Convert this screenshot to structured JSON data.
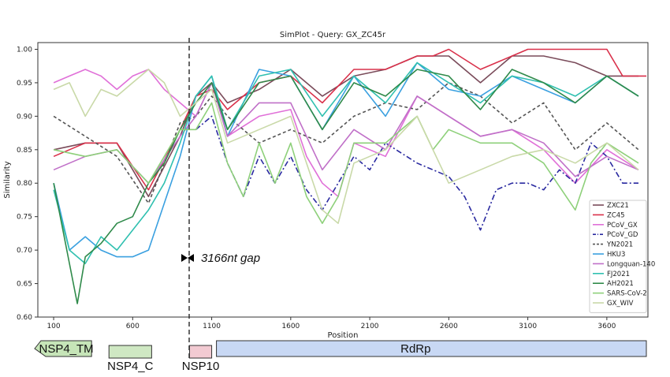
{
  "chart_data": {
    "type": "line",
    "title": "SimPlot - Query: GX_ZC45r",
    "xlabel": "Position",
    "ylabel": "Similarity",
    "xlim": [
      0,
      3860
    ],
    "ylim": [
      0.6,
      1.01
    ],
    "xticks": [
      100,
      600,
      1100,
      1600,
      2100,
      2600,
      3100,
      3600
    ],
    "xtick_labels": [
      "100",
      "600",
      "1100",
      "1600",
      "2100",
      "2600",
      "3100",
      "3600"
    ],
    "yticks": [
      0.6,
      0.65,
      0.7,
      0.75,
      0.8,
      0.85,
      0.9,
      0.95,
      1.0
    ],
    "ytick_labels": [
      "0.60",
      "0.65",
      "0.70",
      "0.75",
      "0.80",
      "0.85",
      "0.90",
      "0.95",
      "1.00"
    ],
    "gap_marker": {
      "x": 920,
      "label": "3166nt gap"
    },
    "legend_position": "lower-right",
    "series": [
      {
        "name": "ZXC21",
        "color": "#7a4b5a",
        "dash": "solid",
        "x": [
          100,
          300,
          500,
          700,
          900,
          1000,
          1100,
          1200,
          1400,
          1600,
          1800,
          2000,
          2200,
          2400,
          2600,
          2800,
          3000,
          3200,
          3400,
          3600,
          3800
        ],
        "y": [
          0.85,
          0.86,
          0.86,
          0.78,
          0.87,
          0.93,
          0.95,
          0.92,
          0.94,
          0.97,
          0.93,
          0.96,
          0.97,
          0.99,
          0.99,
          0.95,
          0.99,
          0.99,
          0.98,
          0.96,
          0.96
        ]
      },
      {
        "name": "ZC45",
        "color": "#d9304a",
        "dash": "solid",
        "x": [
          100,
          300,
          500,
          700,
          900,
          1000,
          1100,
          1200,
          1400,
          1600,
          1800,
          2000,
          2200,
          2400,
          2500,
          2600,
          2800,
          3000,
          3100,
          3600,
          3700,
          3850
        ],
        "y": [
          0.84,
          0.86,
          0.86,
          0.79,
          0.88,
          0.93,
          0.94,
          0.91,
          0.95,
          0.96,
          0.92,
          0.97,
          0.97,
          0.99,
          0.99,
          1.0,
          0.97,
          0.99,
          1.0,
          1.0,
          0.96,
          0.96
        ]
      },
      {
        "name": "PCoV_GX",
        "color": "#e070d8",
        "dash": "solid",
        "x": [
          100,
          200,
          300,
          400,
          500,
          600,
          700,
          800,
          900,
          1000,
          1100,
          1200,
          1400,
          1600,
          1700,
          1800,
          1900,
          2000,
          2200,
          2400,
          2600,
          2800,
          3000,
          3200,
          3400,
          3600,
          3800
        ],
        "y": [
          0.95,
          0.96,
          0.97,
          0.96,
          0.94,
          0.96,
          0.97,
          0.94,
          0.92,
          0.9,
          0.95,
          0.87,
          0.9,
          0.91,
          0.84,
          0.8,
          0.78,
          0.86,
          0.84,
          0.93,
          0.9,
          0.87,
          0.88,
          0.85,
          0.8,
          0.85,
          0.82
        ]
      },
      {
        "name": "PCoV_GD",
        "color": "#2a2aa0",
        "dash": "dashdot",
        "x": [
          1000,
          1100,
          1200,
          1300,
          1400,
          1500,
          1600,
          1700,
          1800,
          1900,
          2000,
          2100,
          2200,
          2400,
          2600,
          2700,
          2800,
          2900,
          3000,
          3100,
          3200,
          3300,
          3400,
          3500,
          3600,
          3700,
          3800
        ],
        "y": [
          0.88,
          0.9,
          0.83,
          0.78,
          0.84,
          0.8,
          0.84,
          0.79,
          0.76,
          0.8,
          0.84,
          0.82,
          0.86,
          0.83,
          0.81,
          0.78,
          0.73,
          0.79,
          0.8,
          0.8,
          0.79,
          0.82,
          0.8,
          0.86,
          0.84,
          0.8,
          0.8
        ]
      },
      {
        "name": "YN2021",
        "color": "#555555",
        "dash": "dashed",
        "x": [
          100,
          300,
          500,
          700,
          900,
          1000,
          1100,
          1200,
          1400,
          1600,
          1800,
          2000,
          2200,
          2400,
          2600,
          2800,
          3000,
          3200,
          3400,
          3600,
          3800
        ],
        "y": [
          0.9,
          0.87,
          0.84,
          0.77,
          0.89,
          0.9,
          0.93,
          0.9,
          0.86,
          0.88,
          0.86,
          0.9,
          0.92,
          0.91,
          0.95,
          0.93,
          0.89,
          0.92,
          0.85,
          0.89,
          0.85
        ]
      },
      {
        "name": "HKU3",
        "color": "#3aa0e0",
        "dash": "solid",
        "x": [
          100,
          200,
          300,
          400,
          500,
          600,
          700,
          800,
          900,
          1000,
          1100,
          1200,
          1400,
          1600,
          1800,
          2000,
          2200,
          2400,
          2600,
          2800,
          3000,
          3200,
          3400,
          3600,
          3800
        ],
        "y": [
          0.8,
          0.7,
          0.72,
          0.7,
          0.69,
          0.69,
          0.7,
          0.77,
          0.84,
          0.93,
          0.96,
          0.87,
          0.97,
          0.96,
          0.88,
          0.96,
          0.9,
          0.98,
          0.94,
          0.93,
          0.96,
          0.94,
          0.92,
          0.96,
          0.93
        ]
      },
      {
        "name": "Longquan-140",
        "color": "#c070c8",
        "dash": "solid",
        "x": [
          100,
          300,
          500,
          700,
          900,
          1000,
          1100,
          1200,
          1400,
          1600,
          1800,
          2000,
          2200,
          2400,
          2600,
          2800,
          3000,
          3200,
          3400,
          3600,
          3800
        ],
        "y": [
          0.82,
          0.84,
          0.85,
          0.8,
          0.87,
          0.9,
          0.95,
          0.87,
          0.92,
          0.92,
          0.82,
          0.88,
          0.85,
          0.93,
          0.9,
          0.87,
          0.88,
          0.86,
          0.81,
          0.84,
          0.82
        ]
      },
      {
        "name": "FJ2021",
        "color": "#30c0b0",
        "dash": "solid",
        "x": [
          100,
          200,
          300,
          400,
          500,
          600,
          700,
          800,
          900,
          1000,
          1100,
          1200,
          1400,
          1600,
          1800,
          2000,
          2200,
          2400,
          2600,
          2800,
          3000,
          3200,
          3400,
          3600,
          3800
        ],
        "y": [
          0.79,
          0.7,
          0.68,
          0.72,
          0.7,
          0.73,
          0.76,
          0.8,
          0.86,
          0.93,
          0.96,
          0.88,
          0.96,
          0.97,
          0.9,
          0.96,
          0.92,
          0.98,
          0.95,
          0.92,
          0.96,
          0.95,
          0.93,
          0.96,
          0.93
        ]
      },
      {
        "name": "AH2021",
        "color": "#2f8a4a",
        "dash": "solid",
        "x": [
          100,
          200,
          250,
          300,
          400,
          500,
          600,
          700,
          800,
          900,
          1000,
          1100,
          1200,
          1400,
          1600,
          1800,
          2000,
          2200,
          2400,
          2600,
          2800,
          3000,
          3200,
          3400,
          3600,
          3800
        ],
        "y": [
          0.8,
          0.68,
          0.62,
          0.69,
          0.71,
          0.74,
          0.75,
          0.8,
          0.83,
          0.88,
          0.92,
          0.95,
          0.88,
          0.95,
          0.96,
          0.88,
          0.95,
          0.93,
          0.97,
          0.96,
          0.91,
          0.97,
          0.95,
          0.92,
          0.96,
          0.93
        ]
      },
      {
        "name": "SARS-CoV-2",
        "color": "#8ed07a",
        "dash": "solid",
        "x": [
          100,
          300,
          500,
          700,
          900,
          1000,
          1100,
          1200,
          1300,
          1400,
          1500,
          1600,
          1700,
          1800,
          1900,
          2000,
          2200,
          2400,
          2500,
          2600,
          2800,
          3000,
          3200,
          3400,
          3500,
          3600,
          3800
        ],
        "y": [
          0.85,
          0.84,
          0.85,
          0.8,
          0.88,
          0.88,
          0.92,
          0.83,
          0.78,
          0.86,
          0.8,
          0.86,
          0.78,
          0.74,
          0.78,
          0.86,
          0.86,
          0.9,
          0.85,
          0.88,
          0.86,
          0.86,
          0.83,
          0.76,
          0.83,
          0.86,
          0.83
        ]
      },
      {
        "name": "GX_WIV",
        "color": "#c9d9a8",
        "dash": "solid",
        "x": [
          100,
          200,
          300,
          400,
          500,
          600,
          700,
          800,
          900,
          1000,
          1100,
          1200,
          1400,
          1600,
          1800,
          1900,
          2000,
          2200,
          2400,
          2600,
          2800,
          3000,
          3200,
          3400,
          3600,
          3800
        ],
        "y": [
          0.94,
          0.95,
          0.9,
          0.94,
          0.93,
          0.95,
          0.97,
          0.95,
          0.9,
          0.92,
          0.94,
          0.86,
          0.88,
          0.9,
          0.76,
          0.74,
          0.83,
          0.85,
          0.9,
          0.8,
          0.82,
          0.84,
          0.85,
          0.83,
          0.86,
          0.82
        ]
      }
    ],
    "gene_map": [
      {
        "label": "NSP4_TM",
        "color": "#c6e5b8",
        "row": 1,
        "x0": -20,
        "x1": 340
      },
      {
        "label": "NSP4_C",
        "color": "#cfe8c3",
        "row": 2,
        "x0": 450,
        "x1": 720
      },
      {
        "label": "NSP10",
        "color": "#f2cad2",
        "row": 2,
        "x0": 960,
        "x1": 1100
      },
      {
        "label": "RdRp",
        "color": "#c8d8f4",
        "row": 1,
        "x0": 1130,
        "x1": 3850
      }
    ]
  }
}
